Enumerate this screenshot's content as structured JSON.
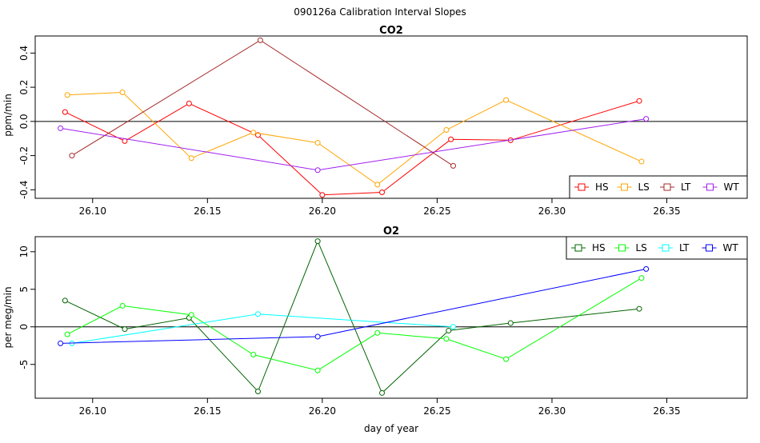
{
  "chart_data": {
    "title": "090126a   Calibration Interval Slopes",
    "xlabel": "day of year",
    "panels": [
      {
        "id": "co2",
        "type": "line",
        "title": "CO2",
        "ylabel": "ppm/min",
        "xlim": [
          26.075,
          26.385
        ],
        "ylim": [
          -0.45,
          0.5
        ],
        "xticks": [
          26.1,
          26.15,
          26.2,
          26.25,
          26.3,
          26.35
        ],
        "xtick_labels": [
          "26.10",
          "26.15",
          "26.20",
          "26.25",
          "26.30",
          "26.35"
        ],
        "yticks": [
          -0.4,
          -0.2,
          0.0,
          0.2,
          0.4
        ],
        "ytick_labels": [
          "-0.4",
          "-0.2",
          "0.0",
          "0.2",
          "0.4"
        ],
        "hline": 0,
        "legend_position": "bottom-right",
        "series": [
          {
            "name": "HS",
            "color": "#ff0000",
            "x": [
              26.088,
              26.114,
              26.142,
              26.172,
              26.2,
              26.226,
              26.256,
              26.282,
              26.338
            ],
            "y": [
              0.055,
              -0.115,
              0.105,
              -0.08,
              -0.43,
              -0.415,
              -0.105,
              -0.11,
              0.12
            ]
          },
          {
            "name": "LS",
            "color": "#ffa500",
            "x": [
              26.089,
              26.113,
              26.143,
              26.17,
              26.198,
              26.224,
              26.254,
              26.28,
              26.339
            ],
            "y": [
              0.155,
              0.17,
              -0.215,
              -0.065,
              -0.125,
              -0.37,
              -0.05,
              0.125,
              -0.235
            ]
          },
          {
            "name": "LT",
            "color": "#a52a2a",
            "x": [
              26.091,
              26.173,
              26.257
            ],
            "y": [
              -0.2,
              0.475,
              -0.26
            ]
          },
          {
            "name": "WT",
            "color": "#a020f0",
            "x": [
              26.086,
              26.198,
              26.341
            ],
            "y": [
              -0.04,
              -0.285,
              0.015
            ]
          }
        ]
      },
      {
        "id": "o2",
        "type": "line",
        "title": "O2",
        "ylabel": "per meg/min",
        "xlim": [
          26.075,
          26.385
        ],
        "ylim": [
          -9.5,
          12
        ],
        "xticks": [
          26.1,
          26.15,
          26.2,
          26.25,
          26.3,
          26.35
        ],
        "xtick_labels": [
          "26.10",
          "26.15",
          "26.20",
          "26.25",
          "26.30",
          "26.35"
        ],
        "yticks": [
          -5,
          0,
          5,
          10
        ],
        "ytick_labels": [
          "-5",
          "0",
          "5",
          "10"
        ],
        "hline": 0,
        "legend_position": "top-right",
        "series": [
          {
            "name": "HS",
            "color": "#006400",
            "x": [
              26.088,
              26.114,
              26.142,
              26.172,
              26.198,
              26.226,
              26.255,
              26.282,
              26.338
            ],
            "y": [
              3.5,
              -0.3,
              1.2,
              -8.6,
              11.4,
              -8.8,
              -0.5,
              0.5,
              2.4
            ]
          },
          {
            "name": "LS",
            "color": "#00ff00",
            "x": [
              26.089,
              26.113,
              26.143,
              26.17,
              26.198,
              26.224,
              26.254,
              26.28,
              26.339
            ],
            "y": [
              -1.0,
              2.8,
              1.6,
              -3.7,
              -5.8,
              -0.8,
              -1.6,
              -4.3,
              6.5
            ]
          },
          {
            "name": "LT",
            "color": "#00ffff",
            "x": [
              26.091,
              26.172,
              26.257
            ],
            "y": [
              -2.2,
              1.7,
              0.0
            ]
          },
          {
            "name": "WT",
            "color": "#0000ff",
            "x": [
              26.086,
              26.198,
              26.341
            ],
            "y": [
              -2.2,
              -1.3,
              7.7
            ]
          }
        ]
      }
    ]
  }
}
